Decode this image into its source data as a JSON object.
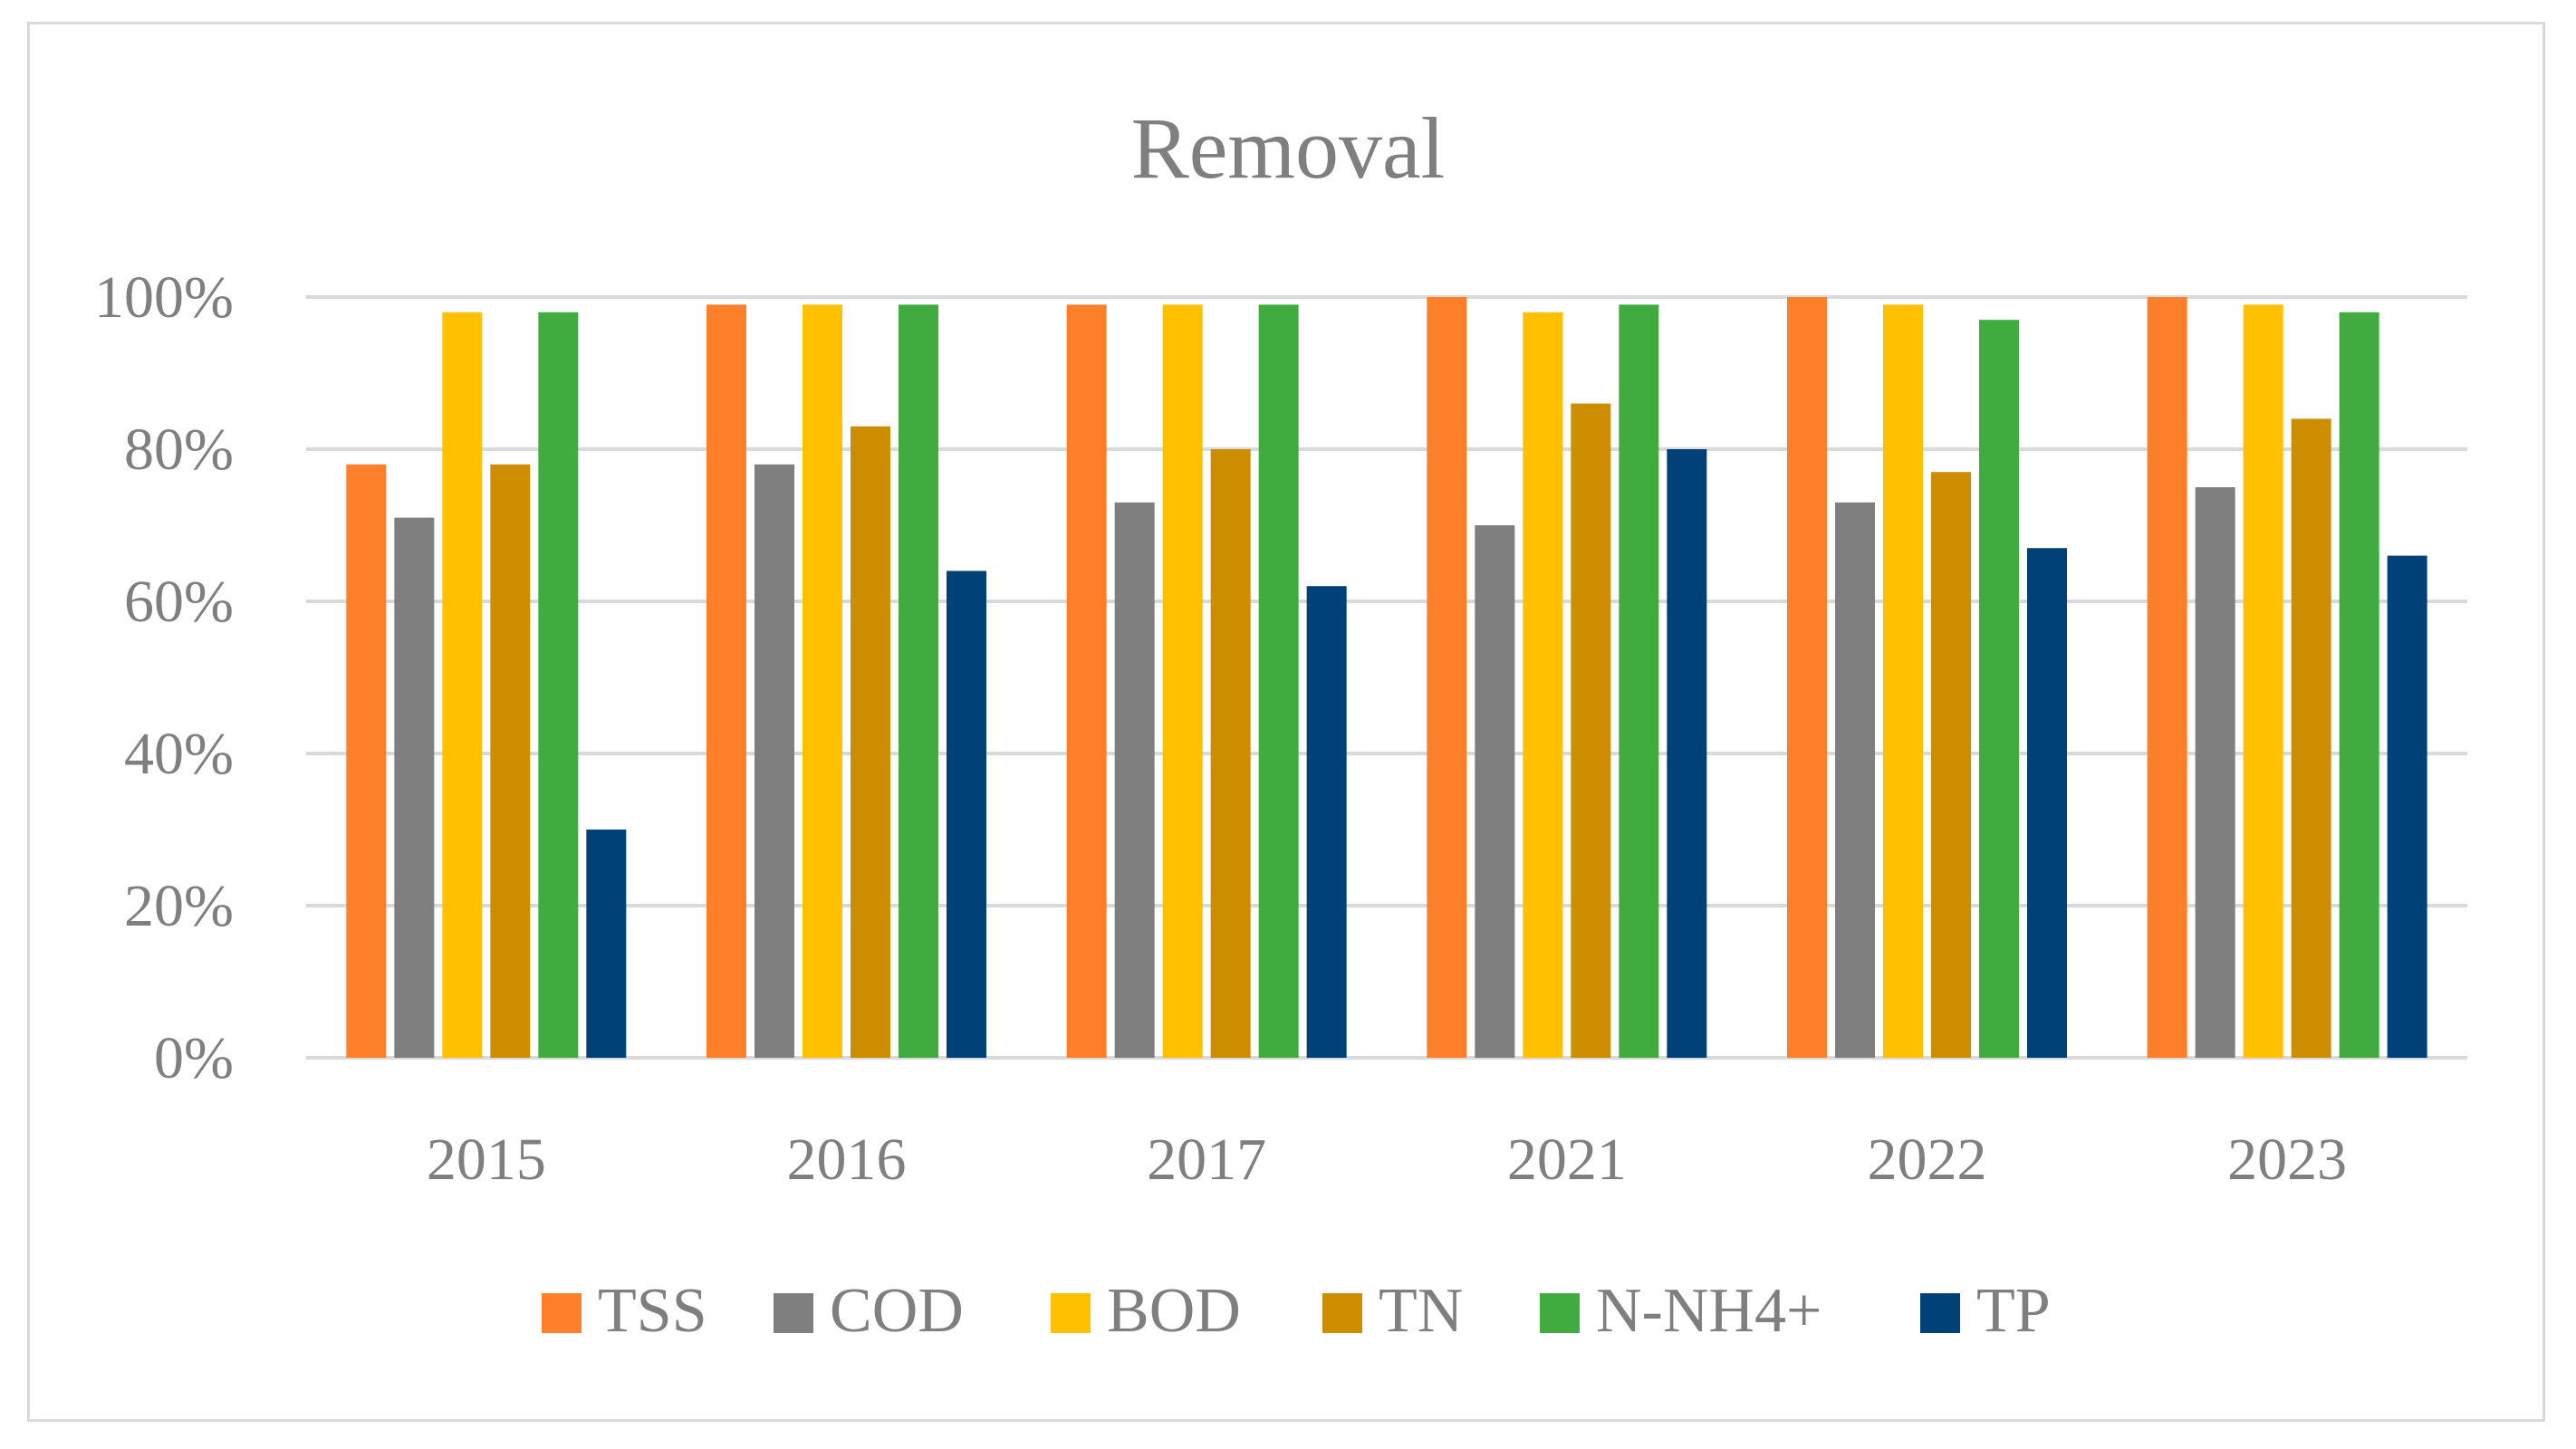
{
  "chart_data": {
    "type": "bar",
    "title": "Removal",
    "xlabel": "",
    "ylabel": "",
    "ylim": [
      0,
      100
    ],
    "yticks": [
      "0%",
      "20%",
      "40%",
      "60%",
      "80%",
      "100%"
    ],
    "categories": [
      "2015",
      "2016",
      "2017",
      "2021",
      "2022",
      "2023"
    ],
    "legend_position": "bottom",
    "series": [
      {
        "name": "TSS",
        "color": "#fe7f2a",
        "values": [
          78,
          99,
          99,
          100,
          100,
          100
        ]
      },
      {
        "name": "COD",
        "color": "#7f7f7f",
        "values": [
          71,
          78,
          73,
          70,
          73,
          75
        ]
      },
      {
        "name": "BOD",
        "color": "#ffc000",
        "values": [
          98,
          99,
          99,
          98,
          99,
          99
        ]
      },
      {
        "name": "TN",
        "color": "#cc8e00",
        "values": [
          78,
          83,
          80,
          86,
          77,
          84
        ]
      },
      {
        "name": "N-NH4+",
        "color": "#40ac40",
        "values": [
          98,
          99,
          99,
          99,
          97,
          98
        ]
      },
      {
        "name": "TP",
        "color": "#004278",
        "values": [
          30,
          64,
          62,
          80,
          67,
          66
        ]
      }
    ]
  }
}
